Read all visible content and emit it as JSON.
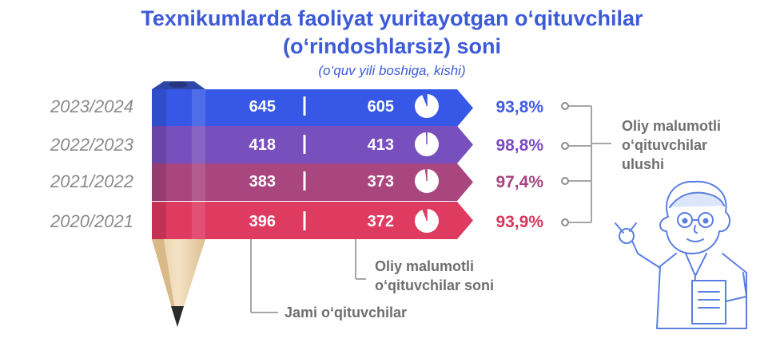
{
  "chart_data": {
    "type": "bar",
    "title_line1": "Texnikumlarda faoliyat yuritayotgan o‘qituvchilar",
    "title_line2": "(o‘rindoshlarsiz) soni",
    "subtitle": "(o‘quv yili boshiga, kishi)",
    "categories": [
      "2023/2024",
      "2022/2023",
      "2021/2022",
      "2020/2021"
    ],
    "series": [
      {
        "name": "Jami o‘qituvchilar",
        "values": [
          645,
          418,
          383,
          396
        ]
      },
      {
        "name": "Oliy malumotli o‘qituvchilar soni",
        "values": [
          605,
          413,
          373,
          372
        ]
      },
      {
        "name": "Oliy malumotli o‘qituvchilar ulushi",
        "values": [
          93.8,
          98.8,
          97.4,
          93.9
        ]
      }
    ],
    "share_labels": [
      "93,8%",
      "98,8%",
      "97,4%",
      "93,9%"
    ],
    "row_colors": [
      "#3758e6",
      "#7850bd",
      "#a9457f",
      "#df3a60"
    ],
    "share_colors": [
      "#3f5be0",
      "#7a4bc0",
      "#a8447f",
      "#d8365a"
    ]
  },
  "annotations": {
    "share_line1": "Oliy malumotli",
    "share_line2": "o‘qituvchilar",
    "share_line3": "ulushi",
    "count_line1": "Oliy malumotli",
    "count_line2": "o‘qituvchilar soni",
    "total_label": "Jami o‘qituvchilar"
  }
}
